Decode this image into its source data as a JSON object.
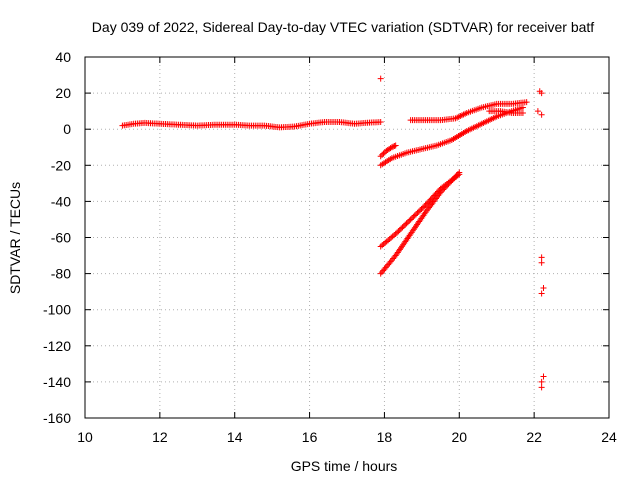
{
  "chart_data": {
    "type": "scatter",
    "title": "Day 039 of 2022, Sidereal Day-to-day VTEC variation (SDTVAR) for receiver batf",
    "xlabel": "GPS time / hours",
    "ylabel": "SDTVAR / TECUs",
    "xlim": [
      10,
      24
    ],
    "ylim": [
      -160,
      40
    ],
    "xticks": [
      10,
      12,
      14,
      16,
      18,
      20,
      22,
      24
    ],
    "yticks": [
      -160,
      -140,
      -120,
      -100,
      -80,
      -60,
      -40,
      -20,
      0,
      20,
      40
    ],
    "grid": true,
    "marker": "+",
    "colors": {
      "series": "#ff0000",
      "grid": "#b0b0b0",
      "axis": "#000000"
    },
    "series": [
      {
        "segments": [
          {
            "x": [
              11.0,
              11.3,
              11.6,
              12.0,
              12.5,
              13.0,
              13.5,
              14.0,
              14.4,
              14.8,
              15.2,
              15.6,
              16.0,
              16.4,
              16.8,
              17.2,
              17.5,
              17.9
            ],
            "y": [
              2.0,
              3.0,
              3.5,
              3.0,
              2.5,
              2.0,
              2.5,
              2.5,
              2.0,
              2.0,
              1.0,
              1.5,
              3.0,
              4.0,
              4.0,
              3.0,
              3.5,
              4.0
            ]
          },
          {
            "x": [
              17.9,
              18.05,
              18.2,
              18.3
            ],
            "y": [
              -15.0,
              -12.0,
              -10.0,
              -9.0
            ]
          },
          {
            "x": [
              17.9,
              18.2,
              18.6,
              19.0,
              19.4,
              19.8,
              20.2,
              20.6,
              21.0,
              21.4,
              21.7
            ],
            "y": [
              -20.0,
              -16.0,
              -13.0,
              -11.0,
              -9.0,
              -6.0,
              -1.0,
              3.0,
              7.0,
              10.0,
              12.0
            ]
          },
          {
            "x": [
              18.7,
              19.0,
              19.5,
              19.9,
              20.2,
              20.6,
              21.0,
              21.4,
              21.8
            ],
            "y": [
              5.0,
              5.0,
              5.0,
              6.0,
              9.0,
              12.0,
              14.0,
              14.0,
              15.0
            ]
          },
          {
            "x": [
              17.9,
              18.3,
              18.7,
              19.1,
              19.5,
              20.0
            ],
            "y": [
              -80.0,
              -70.0,
              -58.0,
              -46.0,
              -35.0,
              -24.0
            ]
          },
          {
            "x": [
              17.9,
              18.3,
              18.7,
              19.1,
              19.5,
              20.0
            ],
            "y": [
              -65.0,
              -58.0,
              -50.0,
              -42.0,
              -33.0,
              -25.0
            ]
          },
          {
            "x": [
              20.8,
              21.1,
              21.4,
              21.7
            ],
            "y": [
              10.0,
              10.0,
              9.0,
              9.0
            ]
          }
        ],
        "points": [
          [
            17.9,
            28
          ],
          [
            22.15,
            21
          ],
          [
            22.2,
            20
          ],
          [
            22.1,
            10
          ],
          [
            22.2,
            8
          ],
          [
            22.2,
            -71
          ],
          [
            22.2,
            -74
          ],
          [
            22.25,
            -88
          ],
          [
            22.2,
            -91
          ],
          [
            22.25,
            -137
          ],
          [
            22.2,
            -140
          ],
          [
            22.2,
            -143
          ]
        ]
      }
    ]
  }
}
